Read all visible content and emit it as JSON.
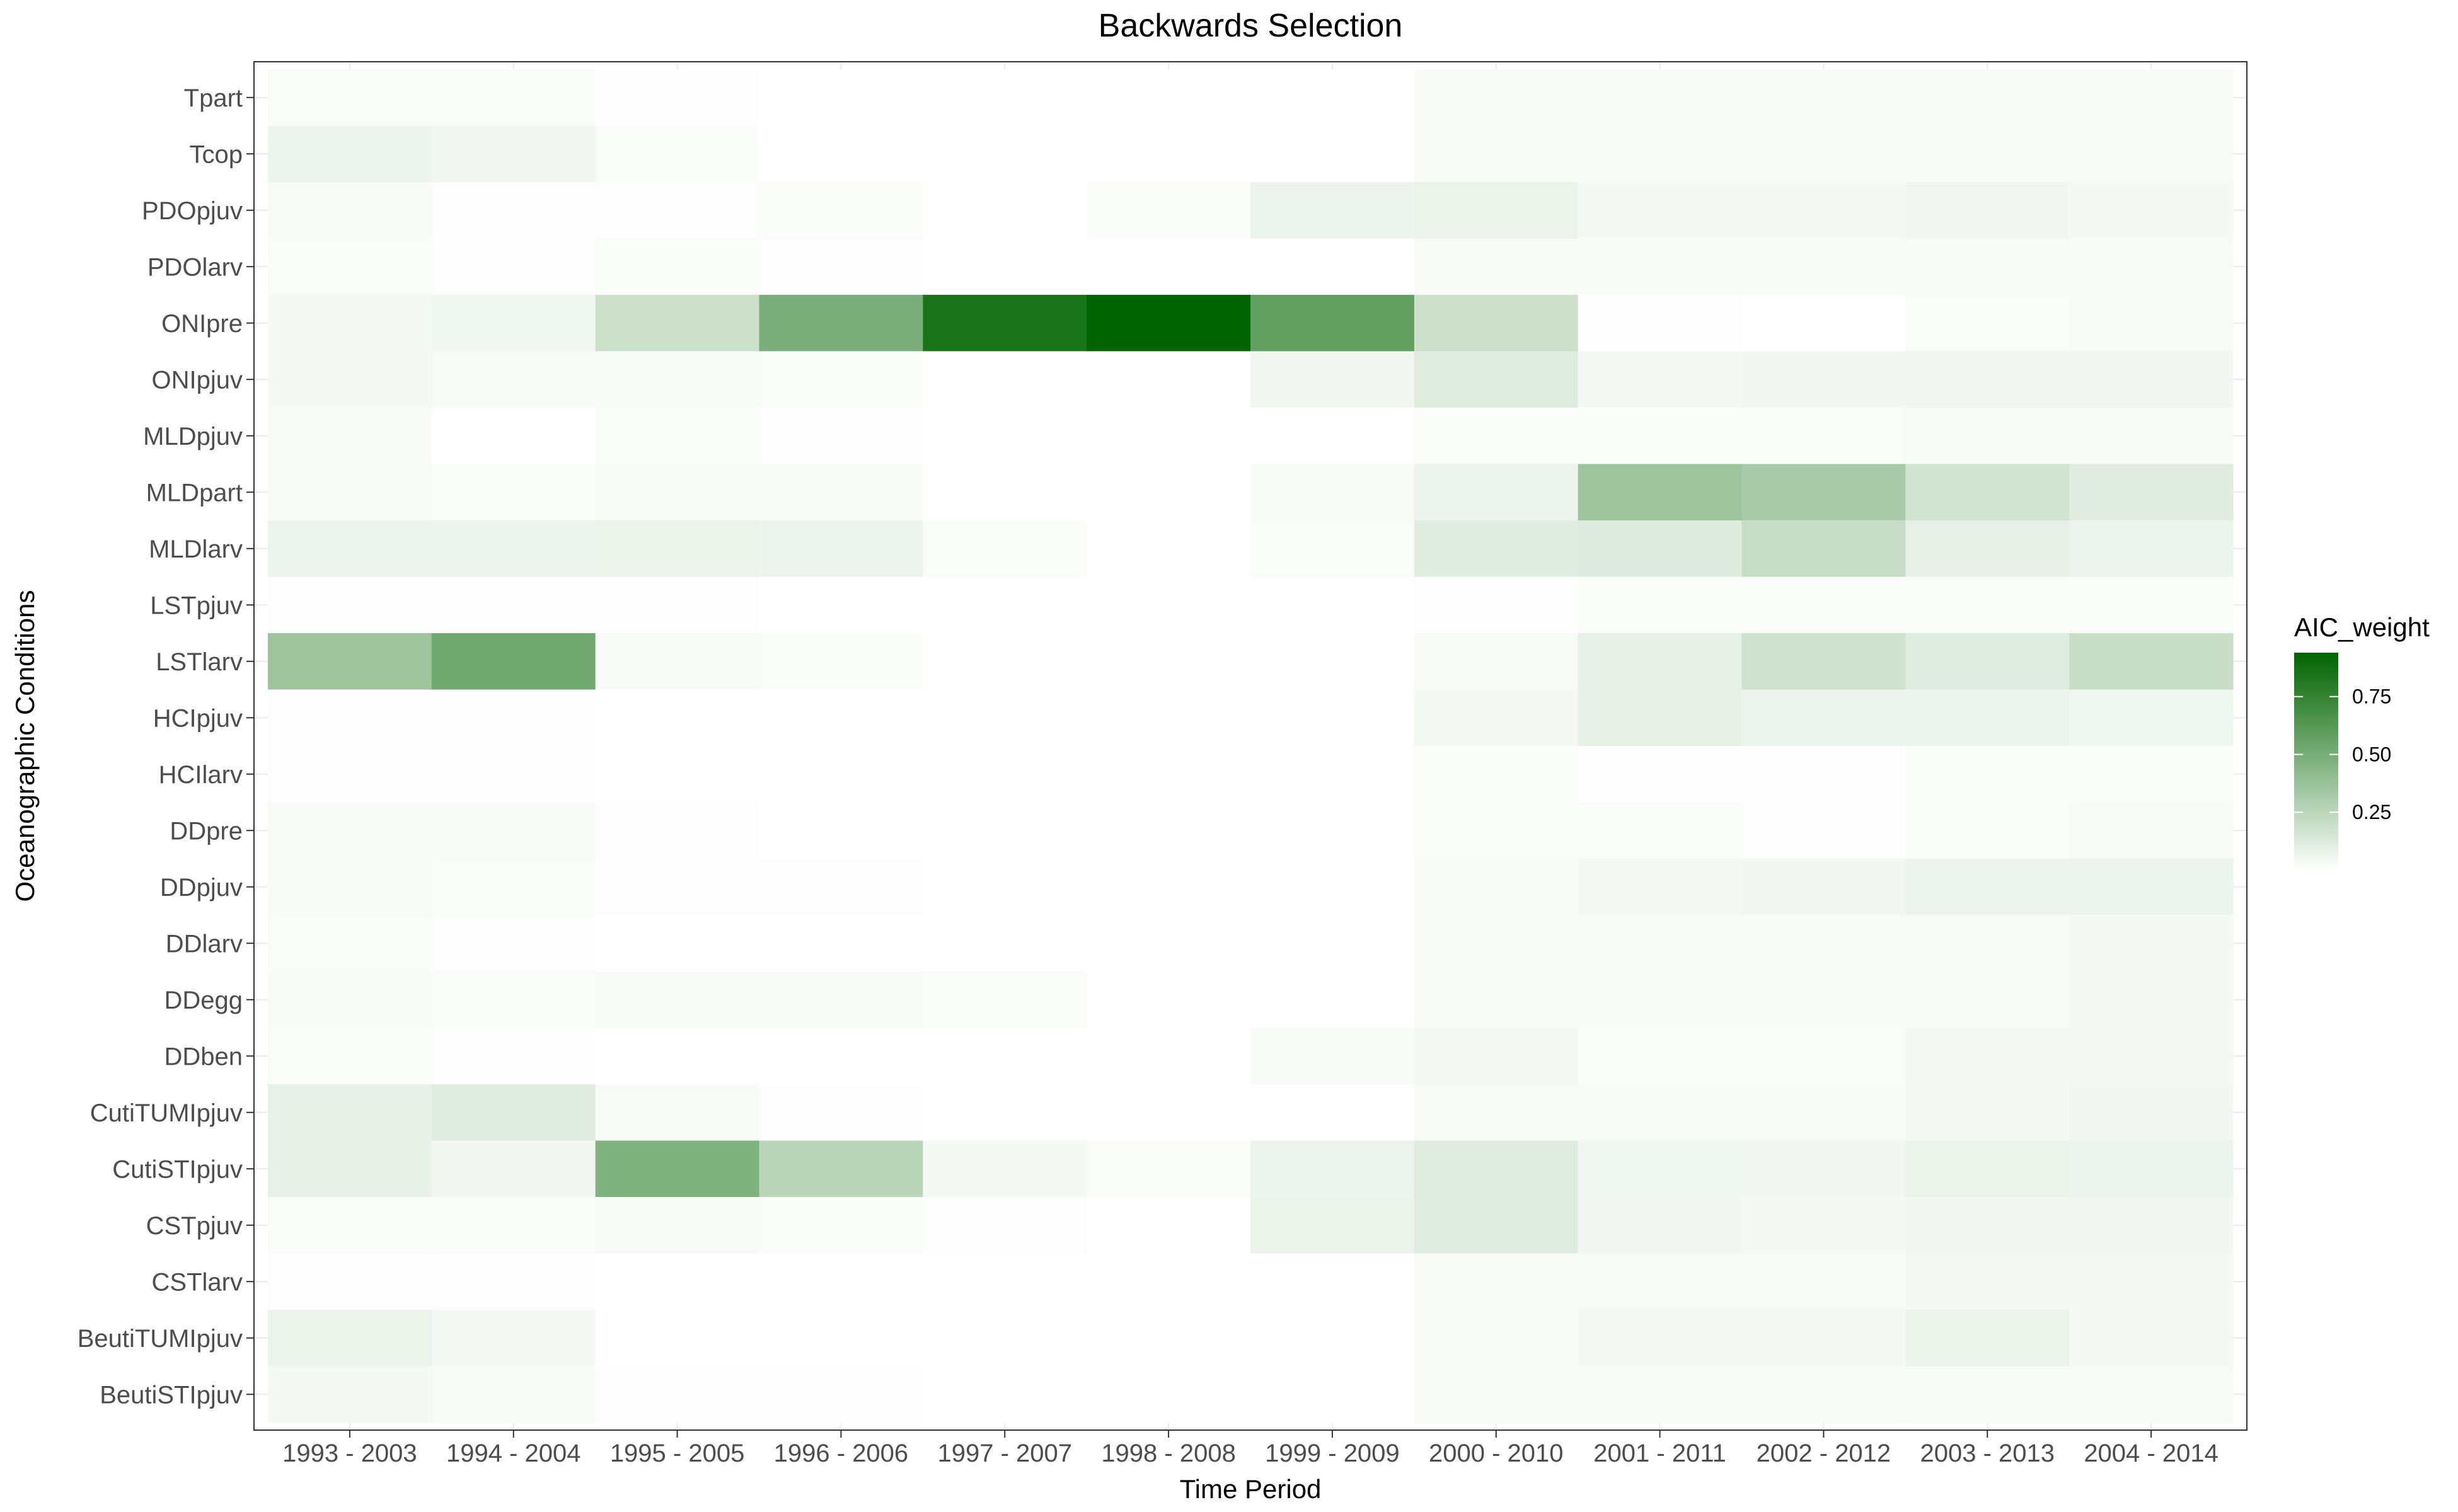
{
  "chart_data": {
    "type": "heatmap",
    "title": "Backwards Selection",
    "xlabel": "Time Period",
    "ylabel": "Oceanographic Conditions",
    "x": [
      "1993 - 2003",
      "1994 - 2004",
      "1995 - 2005",
      "1996 - 2006",
      "1997 - 2007",
      "1998 - 2008",
      "1999 - 2009",
      "2000 - 2010",
      "2001 - 2011",
      "2002 - 2012",
      "2003 - 2013",
      "2004 - 2014"
    ],
    "y": [
      "Tpart",
      "Tcop",
      "PDOpjuv",
      "PDOlarv",
      "ONIpre",
      "ONIpjuv",
      "MLDpjuv",
      "MLDpart",
      "MLDlarv",
      "LSTpjuv",
      "LSTlarv",
      "HCIpjuv",
      "HCIlarv",
      "DDpre",
      "DDpjuv",
      "DDlarv",
      "DDegg",
      "DDben",
      "CutiTUMIpjuv",
      "CutiSTIpjuv",
      "CSTpjuv",
      "CSTlarv",
      "BeutiTUMIpjuv",
      "BeutiSTIpjuv"
    ],
    "values": [
      [
        0.02,
        0.02,
        0.01,
        0.0,
        0.0,
        0.0,
        0.0,
        0.03,
        0.03,
        0.03,
        0.03,
        0.03
      ],
      [
        0.07,
        0.05,
        0.02,
        0.0,
        0.0,
        0.0,
        0.0,
        0.03,
        0.03,
        0.03,
        0.03,
        0.03
      ],
      [
        0.03,
        0.01,
        0.01,
        0.02,
        0.0,
        0.02,
        0.07,
        0.08,
        0.04,
        0.04,
        0.05,
        0.04
      ],
      [
        0.02,
        0.01,
        0.02,
        0.01,
        0.0,
        0.0,
        0.0,
        0.03,
        0.03,
        0.03,
        0.03,
        0.03
      ],
      [
        0.04,
        0.06,
        0.2,
        0.52,
        0.9,
        1.0,
        0.62,
        0.2,
        0.01,
        0.0,
        0.02,
        0.03
      ],
      [
        0.04,
        0.03,
        0.03,
        0.02,
        0.0,
        0.0,
        0.05,
        0.12,
        0.04,
        0.05,
        0.05,
        0.05
      ],
      [
        0.03,
        0.0,
        0.02,
        0.01,
        0.0,
        0.0,
        0.0,
        0.02,
        0.02,
        0.02,
        0.03,
        0.03
      ],
      [
        0.03,
        0.02,
        0.03,
        0.03,
        0.0,
        0.0,
        0.03,
        0.07,
        0.38,
        0.34,
        0.18,
        0.12
      ],
      [
        0.07,
        0.07,
        0.08,
        0.07,
        0.02,
        0.0,
        0.02,
        0.12,
        0.13,
        0.22,
        0.1,
        0.07
      ],
      [
        0.01,
        0.01,
        0.01,
        0.0,
        0.0,
        0.0,
        0.0,
        0.01,
        0.02,
        0.02,
        0.02,
        0.02
      ],
      [
        0.38,
        0.56,
        0.03,
        0.02,
        0.0,
        0.0,
        0.0,
        0.03,
        0.1,
        0.19,
        0.12,
        0.21
      ],
      [
        0.01,
        0.01,
        0.0,
        0.0,
        0.0,
        0.0,
        0.0,
        0.04,
        0.1,
        0.07,
        0.07,
        0.06
      ],
      [
        0.01,
        0.01,
        0.0,
        0.0,
        0.0,
        0.0,
        0.0,
        0.02,
        0.01,
        0.01,
        0.02,
        0.02
      ],
      [
        0.03,
        0.03,
        0.01,
        0.0,
        0.0,
        0.0,
        0.0,
        0.02,
        0.02,
        0.01,
        0.02,
        0.03
      ],
      [
        0.03,
        0.02,
        0.01,
        0.01,
        0.0,
        0.0,
        0.0,
        0.03,
        0.04,
        0.05,
        0.07,
        0.07
      ],
      [
        0.02,
        0.01,
        0.0,
        0.0,
        0.0,
        0.0,
        0.0,
        0.03,
        0.03,
        0.03,
        0.03,
        0.04
      ],
      [
        0.03,
        0.02,
        0.03,
        0.03,
        0.02,
        0.0,
        0.0,
        0.03,
        0.03,
        0.03,
        0.03,
        0.04
      ],
      [
        0.02,
        0.01,
        0.0,
        0.0,
        0.0,
        0.0,
        0.03,
        0.04,
        0.02,
        0.02,
        0.04,
        0.04
      ],
      [
        0.09,
        0.12,
        0.03,
        0.01,
        0.0,
        0.0,
        0.0,
        0.03,
        0.03,
        0.03,
        0.04,
        0.05
      ],
      [
        0.09,
        0.05,
        0.5,
        0.27,
        0.04,
        0.02,
        0.07,
        0.12,
        0.06,
        0.05,
        0.08,
        0.07
      ],
      [
        0.02,
        0.02,
        0.03,
        0.02,
        0.01,
        0.0,
        0.08,
        0.12,
        0.05,
        0.04,
        0.05,
        0.05
      ],
      [
        0.01,
        0.01,
        0.0,
        0.0,
        0.0,
        0.0,
        0.0,
        0.03,
        0.03,
        0.03,
        0.04,
        0.04
      ],
      [
        0.08,
        0.04,
        0.0,
        0.0,
        0.0,
        0.0,
        0.0,
        0.03,
        0.04,
        0.04,
        0.08,
        0.04
      ],
      [
        0.04,
        0.03,
        0.01,
        0.01,
        0.0,
        0.0,
        0.0,
        0.03,
        0.03,
        0.03,
        0.03,
        0.03
      ]
    ],
    "colorscale": {
      "low": "#ffffff",
      "high": "#006400",
      "min": 0.0,
      "max": 1.0
    },
    "legend": {
      "title": "AIC_weight",
      "placement": "right",
      "ticks": [
        0.25,
        0.5,
        0.75
      ],
      "tick_labels": [
        "0.25",
        "0.50",
        "0.75"
      ]
    },
    "grid": true
  }
}
